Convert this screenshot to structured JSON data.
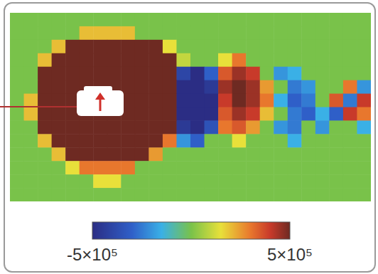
{
  "chart_data": {
    "type": "heatmap",
    "tick_labels": false,
    "cells": [
      [
        0,
        0,
        0,
        0,
        0,
        0,
        0,
        0,
        0,
        0,
        0,
        0,
        0,
        0,
        0,
        0,
        0,
        0,
        0,
        0,
        0,
        0,
        0,
        0,
        0,
        0
      ],
      [
        0,
        0,
        0,
        0,
        0,
        200000,
        200000,
        200000,
        200000,
        0,
        0,
        0,
        0,
        0,
        0,
        0,
        0,
        0,
        0,
        0,
        0,
        0,
        0,
        0,
        0,
        0
      ],
      [
        0,
        0,
        0,
        200000,
        500000,
        500000,
        500000,
        500000,
        500000,
        500000,
        500000,
        150000,
        0,
        0,
        0,
        0,
        0,
        0,
        0,
        0,
        0,
        0,
        0,
        0,
        0,
        0
      ],
      [
        0,
        0,
        200000,
        500000,
        500000,
        500000,
        500000,
        500000,
        500000,
        500000,
        500000,
        500000,
        100000,
        0,
        0,
        150000,
        300000,
        0,
        0,
        0,
        0,
        0,
        0,
        0,
        0,
        0
      ],
      [
        0,
        0,
        500000,
        500000,
        500000,
        500000,
        500000,
        500000,
        500000,
        500000,
        500000,
        500000,
        -400000,
        -500000,
        -300000,
        350000,
        450000,
        400000,
        0,
        -200000,
        -150000,
        0,
        0,
        0,
        0,
        0
      ],
      [
        0,
        0,
        500000,
        500000,
        500000,
        500000,
        500000,
        500000,
        500000,
        500000,
        500000,
        500000,
        -500000,
        -500000,
        -450000,
        450000,
        500000,
        450000,
        250000,
        0,
        -250000,
        -200000,
        0,
        0,
        300000,
        -200000
      ],
      [
        0,
        200000,
        500000,
        500000,
        500000,
        500000,
        500000,
        500000,
        500000,
        500000,
        500000,
        500000,
        -500000,
        -500000,
        -500000,
        400000,
        500000,
        450000,
        300000,
        -150000,
        -300000,
        -250000,
        0,
        350000,
        -250000,
        400000
      ],
      [
        0,
        200000,
        500000,
        500000,
        500000,
        500000,
        500000,
        500000,
        500000,
        500000,
        500000,
        500000,
        -500000,
        -500000,
        -500000,
        350000,
        450000,
        400000,
        200000,
        0,
        -250000,
        -300000,
        -150000,
        -300000,
        400000,
        300000
      ],
      [
        0,
        0,
        500000,
        500000,
        500000,
        500000,
        500000,
        500000,
        500000,
        500000,
        500000,
        500000,
        -450000,
        -500000,
        -350000,
        300000,
        350000,
        250000,
        0,
        -200000,
        -250000,
        0,
        -200000,
        0,
        0,
        -150000
      ],
      [
        0,
        0,
        200000,
        500000,
        500000,
        500000,
        500000,
        500000,
        500000,
        500000,
        500000,
        300000,
        -200000,
        -300000,
        0,
        0,
        150000,
        0,
        0,
        0,
        -150000,
        0,
        0,
        0,
        0,
        0
      ],
      [
        0,
        0,
        0,
        200000,
        500000,
        500000,
        500000,
        500000,
        500000,
        500000,
        250000,
        0,
        0,
        0,
        0,
        0,
        0,
        0,
        0,
        0,
        0,
        0,
        0,
        0,
        0,
        0
      ],
      [
        0,
        0,
        0,
        0,
        150000,
        300000,
        300000,
        300000,
        300000,
        0,
        0,
        0,
        0,
        0,
        0,
        0,
        0,
        0,
        0,
        0,
        0,
        0,
        0,
        0,
        0,
        0
      ],
      [
        0,
        0,
        0,
        0,
        0,
        0,
        150000,
        150000,
        0,
        0,
        0,
        0,
        0,
        0,
        0,
        0,
        0,
        0,
        0,
        0,
        0,
        0,
        0,
        0,
        0,
        0
      ],
      [
        0,
        0,
        0,
        0,
        0,
        0,
        0,
        0,
        0,
        0,
        0,
        0,
        0,
        0,
        0,
        0,
        0,
        0,
        0,
        0,
        0,
        0,
        0,
        0,
        0,
        0
      ]
    ],
    "colorbar": {
      "range": [
        -500000,
        500000
      ],
      "ticks": [
        {
          "value": -500000,
          "label": "-5×10⁵"
        },
        {
          "value": 500000,
          "label": "5×10⁵"
        }
      ]
    }
  }
}
